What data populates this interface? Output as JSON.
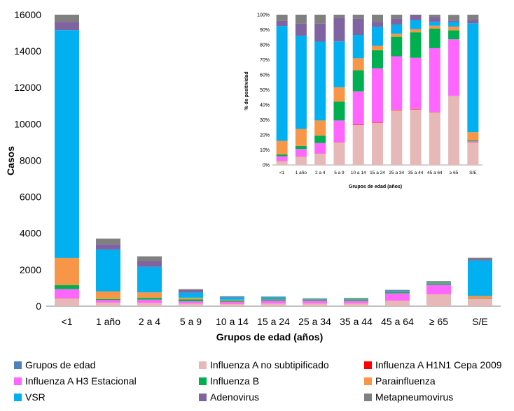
{
  "chart_data": [
    {
      "type": "bar",
      "stacked": true,
      "title": "",
      "xlabel": "Grupos de edad (años)",
      "ylabel": "Casos",
      "ylim": [
        0,
        16000
      ],
      "yticks": [
        0,
        2000,
        4000,
        6000,
        8000,
        10000,
        12000,
        14000,
        16000
      ],
      "grid": false,
      "categories": [
        "<1",
        "1 año",
        "2 a 4",
        "5 a 9",
        "10 a 14",
        "15 a 24",
        "25 a 34",
        "35 a 44",
        "45 a 64",
        "≥ 65",
        "S/E"
      ],
      "series": [
        {
          "name": "Influenza A no subtipificado",
          "color": "#e6b9b8",
          "values": [
            430,
            190,
            180,
            140,
            130,
            140,
            150,
            150,
            300,
            650,
            390
          ]
        },
        {
          "name": "Influenza A H1N1 Cepa 2009",
          "color": "#ff0000",
          "values": [
            10,
            5,
            5,
            5,
            5,
            5,
            5,
            5,
            5,
            5,
            5
          ]
        },
        {
          "name": "Influenza A H3 Estacional",
          "color": "#ff66ff",
          "values": [
            490,
            140,
            170,
            120,
            110,
            160,
            150,
            140,
            400,
            520,
            10
          ]
        },
        {
          "name": "Influenza B",
          "color": "#00b050",
          "values": [
            220,
            50,
            100,
            110,
            70,
            60,
            60,
            80,
            60,
            80,
            15
          ]
        },
        {
          "name": "Parainfluenza",
          "color": "#f79646",
          "values": [
            1500,
            420,
            300,
            90,
            40,
            20,
            10,
            10,
            20,
            30,
            140
          ]
        },
        {
          "name": "VSR",
          "color": "#00b0f0",
          "values": [
            12500,
            2300,
            1400,
            280,
            130,
            110,
            20,
            30,
            60,
            40,
            1950
          ]
        },
        {
          "name": "Adenovirus",
          "color": "#8064a2",
          "values": [
            450,
            300,
            320,
            140,
            30,
            15,
            20,
            20,
            20,
            20,
            60
          ]
        },
        {
          "name": "Metapneumovirus",
          "color": "#808080",
          "values": [
            400,
            300,
            260,
            50,
            30,
            20,
            20,
            20,
            30,
            30,
            90
          ]
        }
      ]
    },
    {
      "type": "bar",
      "stacked": true,
      "title": "",
      "xlabel": "Grupos de edad (años)",
      "ylabel": "% de positividad",
      "ylim": [
        0,
        100
      ],
      "yticks": [
        "0%",
        "10%",
        "20%",
        "30%",
        "40%",
        "50%",
        "60%",
        "70%",
        "80%",
        "90%",
        "100%"
      ],
      "grid": false,
      "categories": [
        "<1",
        "1 año",
        "2 a 4",
        "5 a 9",
        "10 a 14",
        "15 a 24",
        "25 a 34",
        "35 a 44",
        "45 a 64",
        "≥ 65",
        "S/E"
      ],
      "series": [
        {
          "name": "Influenza A no subtipificado",
          "color": "#e6b9b8",
          "values": [
            2.7,
            5.5,
            7.5,
            15,
            26.5,
            28,
            36.5,
            37,
            35,
            46,
            15
          ]
        },
        {
          "name": "Influenza A H1N1 Cepa 2009",
          "color": "#ff0000",
          "values": [
            0.1,
            0.1,
            0.1,
            0.1,
            0.3,
            0.3,
            0.3,
            0.3,
            0.2,
            0.1,
            0.2
          ]
        },
        {
          "name": "Influenza A H3 Estacional",
          "color": "#ff66ff",
          "values": [
            3,
            5,
            7,
            14.5,
            22.2,
            36,
            35.5,
            34,
            42.5,
            37.5,
            0.5
          ]
        },
        {
          "name": "Influenza B",
          "color": "#00b050",
          "values": [
            1.2,
            2,
            5,
            12.5,
            14,
            12,
            13,
            17,
            13,
            6,
            0.6
          ]
        },
        {
          "name": "Parainfluenza",
          "color": "#f79646",
          "values": [
            9,
            11.4,
            10,
            9.6,
            8,
            3,
            2,
            2,
            2,
            2.5,
            5.5
          ]
        },
        {
          "name": "VSR",
          "color": "#00b0f0",
          "values": [
            76.5,
            62,
            52.5,
            30.5,
            15.5,
            12.5,
            6,
            6,
            2.5,
            3,
            72.5
          ]
        },
        {
          "name": "Adenovirus",
          "color": "#8064a2",
          "values": [
            3.5,
            8,
            12,
            15.5,
            11,
            3.5,
            4.2,
            3.7,
            3.2,
            1,
            2.2
          ]
        },
        {
          "name": "Metapneumovirus",
          "color": "#808080",
          "values": [
            4,
            6,
            5.9,
            2.3,
            2.5,
            4.7,
            2.5,
            0,
            1.6,
            3.8,
            3.5
          ]
        }
      ]
    }
  ],
  "legend": {
    "placement": "bottom",
    "items": [
      {
        "label": "Grupos de edad",
        "color": "#4f81bd"
      },
      {
        "label": "Influenza A no subtipificado",
        "color": "#e6b9b8"
      },
      {
        "label": "Influenza A H1N1 Cepa 2009",
        "color": "#ff0000"
      },
      {
        "label": " Influenza A H3 Estacional",
        "color": "#ff66ff"
      },
      {
        "label": "Influenza B",
        "color": "#00b050"
      },
      {
        "label": "Parainfluenza",
        "color": "#f79646"
      },
      {
        "label": "VSR",
        "color": "#00b0f0"
      },
      {
        "label": "Adenovirus",
        "color": "#8064a2"
      },
      {
        "label": "Metapneumovirus",
        "color": "#808080"
      }
    ]
  }
}
